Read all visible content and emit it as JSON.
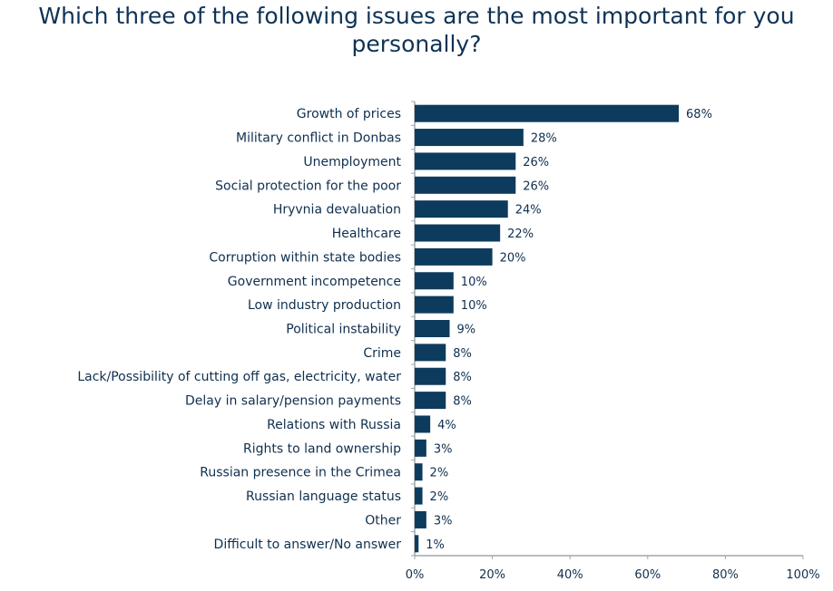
{
  "chart_data": {
    "type": "bar",
    "orientation": "horizontal",
    "title": "Which three of the following issues are the most important for you personally?",
    "xlabel": "",
    "ylabel": "",
    "xlim": [
      0,
      100
    ],
    "xticks": [
      "0%",
      "20%",
      "40%",
      "60%",
      "80%",
      "100%"
    ],
    "categories": [
      "Growth of prices",
      "Military conflict in Donbas",
      "Unemployment",
      "Social protection for the poor",
      "Hryvnia devaluation",
      "Healthcare",
      "Corruption within state bodies",
      "Government incompetence",
      "Low industry production",
      "Political instability",
      "Crime",
      "Lack/Possibility of cutting off gas, electricity, water",
      "Delay in salary/pension payments",
      "Relations with Russia",
      "Rights to land ownership",
      "Russian presence in the Crimea",
      "Russian language status",
      "Other",
      "Difficult to answer/No answer"
    ],
    "values": [
      68,
      28,
      26,
      26,
      24,
      22,
      20,
      10,
      10,
      9,
      8,
      8,
      8,
      4,
      3,
      2,
      2,
      3,
      1
    ],
    "bar_color": "#0d3b5e",
    "grid": false
  }
}
